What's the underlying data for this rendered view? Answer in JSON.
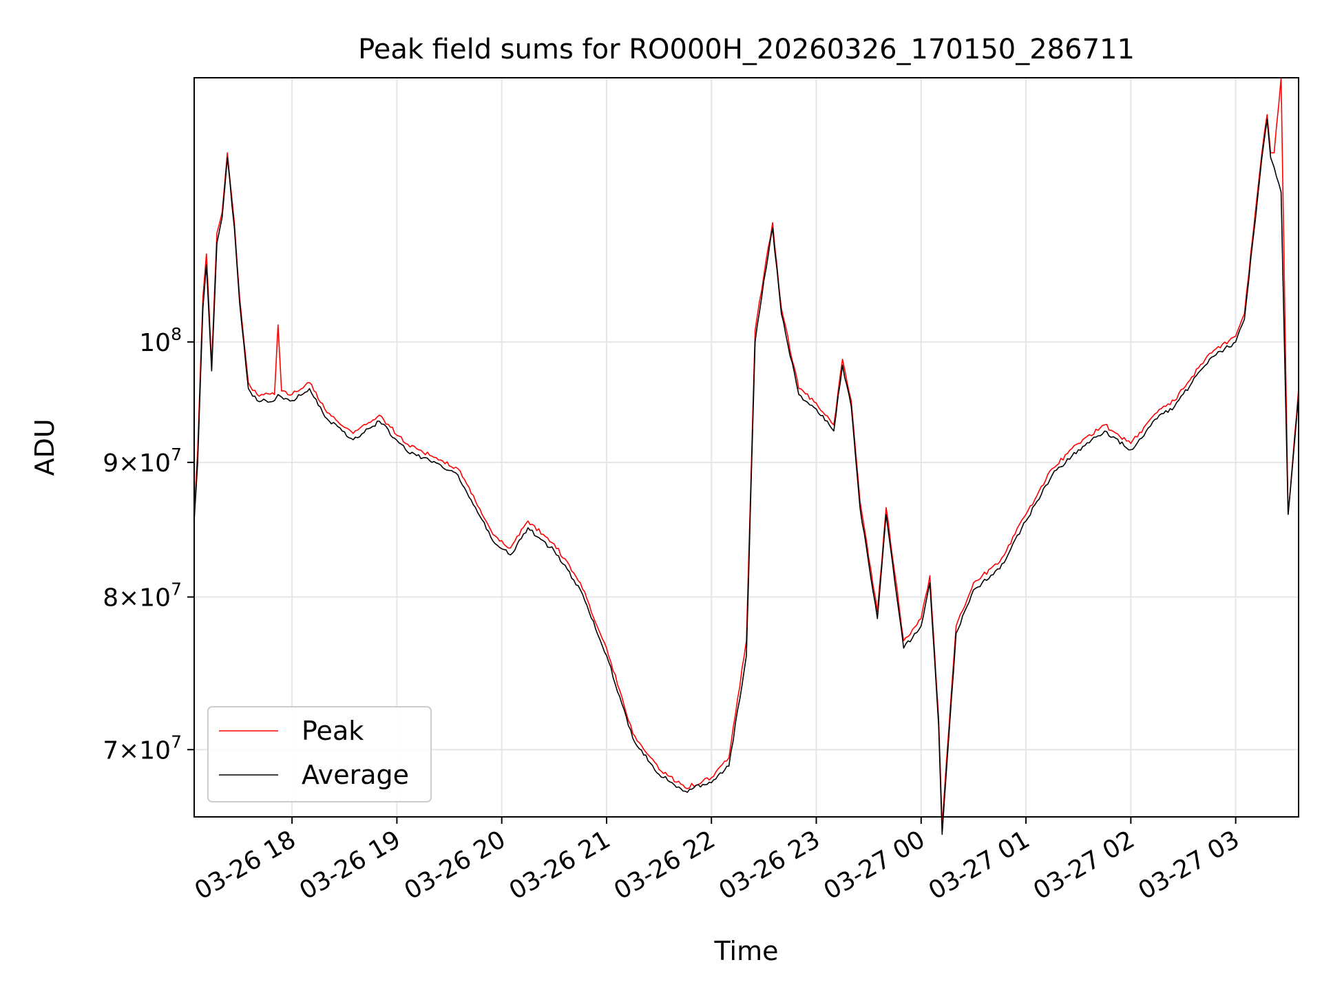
{
  "chart_data": {
    "type": "line",
    "title": "Peak field sums for RO000H_20260326_170150_286711",
    "xlabel": "Time",
    "ylabel": "ADU",
    "y_scale": "log",
    "ylim": [
      66000000,
      126000000
    ],
    "xlim": [
      "03-26 17:04",
      "03-27 03:36"
    ],
    "grid": true,
    "legend_position": "lower-left",
    "x_ticks": [
      "03-26 18",
      "03-26 19",
      "03-26 20",
      "03-26 21",
      "03-26 22",
      "03-26 23",
      "03-27 00",
      "03-27 01",
      "03-27 02",
      "03-27 03"
    ],
    "y_ticks": [
      {
        "value": 70000000,
        "mantissa": "7",
        "exponent": "7"
      },
      {
        "value": 80000000,
        "mantissa": "8",
        "exponent": "7"
      },
      {
        "value": 90000000,
        "mantissa": "9",
        "exponent": "7"
      },
      {
        "value": 100000000,
        "mantissa": "",
        "exponent": "8"
      }
    ],
    "series": [
      {
        "name": "Peak",
        "color": "#ff0000",
        "x": [
          "03-26 17:04",
          "03-26 17:06",
          "03-26 17:09",
          "03-26 17:11",
          "03-26 17:14",
          "03-26 17:17",
          "03-26 17:20",
          "03-26 17:23",
          "03-26 17:27",
          "03-26 17:30",
          "03-26 17:35",
          "03-26 17:40",
          "03-26 17:50",
          "03-26 17:52",
          "03-26 17:54",
          "03-26 18:00",
          "03-26 18:10",
          "03-26 18:20",
          "03-26 18:35",
          "03-26 18:50",
          "03-26 19:05",
          "03-26 19:20",
          "03-26 19:35",
          "03-26 19:45",
          "03-26 19:55",
          "03-26 20:05",
          "03-26 20:15",
          "03-26 20:30",
          "03-26 20:45",
          "03-26 21:00",
          "03-26 21:15",
          "03-26 21:30",
          "03-26 21:45",
          "03-26 21:55",
          "03-26 22:00",
          "03-26 22:10",
          "03-26 22:20",
          "03-26 22:25",
          "03-26 22:30",
          "03-26 22:35",
          "03-26 22:40",
          "03-26 22:50",
          "03-26 23:00",
          "03-26 23:10",
          "03-26 23:15",
          "03-26 23:20",
          "03-26 23:25",
          "03-26 23:35",
          "03-26 23:40",
          "03-26 23:50",
          "03-27 00:00",
          "03-27 00:05",
          "03-27 00:10",
          "03-27 00:12",
          "03-27 00:20",
          "03-27 00:30",
          "03-27 00:45",
          "03-27 01:00",
          "03-27 01:15",
          "03-27 01:30",
          "03-27 01:45",
          "03-27 02:00",
          "03-27 02:15",
          "03-27 02:25",
          "03-27 02:35",
          "03-27 02:45",
          "03-27 03:00",
          "03-27 03:05",
          "03-27 03:10",
          "03-27 03:15",
          "03-27 03:18",
          "03-27 03:20",
          "03-27 03:22",
          "03-27 03:26",
          "03-27 03:30",
          "03-27 03:36"
        ],
        "y": [
          86000000,
          91000000,
          104000000,
          108000000,
          98000000,
          110000000,
          112000000,
          118000000,
          111000000,
          104000000,
          96500000,
          95500000,
          95500000,
          101500000,
          95800000,
          95500000,
          96500000,
          94000000,
          92300000,
          93800000,
          91500000,
          90500000,
          89500000,
          87000000,
          84500000,
          83500000,
          85500000,
          83800000,
          81000000,
          76500000,
          71000000,
          68800000,
          67700000,
          68100000,
          68300000,
          69500000,
          77000000,
          101000000,
          106000000,
          111000000,
          103000000,
          96000000,
          94800000,
          93000000,
          98500000,
          95000000,
          87000000,
          79000000,
          86500000,
          77000000,
          78500000,
          81500000,
          72000000,
          65500000,
          78000000,
          81000000,
          82500000,
          86000000,
          89500000,
          91500000,
          93000000,
          91500000,
          94000000,
          95000000,
          97000000,
          99000000,
          100500000,
          102500000,
          110000000,
          118000000,
          122000000,
          118000000,
          118000000,
          126000000,
          86000000,
          96000000
        ]
      },
      {
        "name": "Average",
        "color": "#000000",
        "x": [
          "03-26 17:04",
          "03-26 17:06",
          "03-26 17:09",
          "03-26 17:11",
          "03-26 17:14",
          "03-26 17:17",
          "03-26 17:20",
          "03-26 17:23",
          "03-26 17:27",
          "03-26 17:30",
          "03-26 17:35",
          "03-26 17:40",
          "03-26 17:50",
          "03-26 17:52",
          "03-26 17:54",
          "03-26 18:00",
          "03-26 18:10",
          "03-26 18:20",
          "03-26 18:35",
          "03-26 18:50",
          "03-26 19:05",
          "03-26 19:20",
          "03-26 19:35",
          "03-26 19:45",
          "03-26 19:55",
          "03-26 20:05",
          "03-26 20:15",
          "03-26 20:30",
          "03-26 20:45",
          "03-26 21:00",
          "03-26 21:15",
          "03-26 21:30",
          "03-26 21:45",
          "03-26 21:55",
          "03-26 22:00",
          "03-26 22:10",
          "03-26 22:20",
          "03-26 22:25",
          "03-26 22:30",
          "03-26 22:35",
          "03-26 22:40",
          "03-26 22:50",
          "03-26 23:00",
          "03-26 23:10",
          "03-26 23:15",
          "03-26 23:20",
          "03-26 23:25",
          "03-26 23:35",
          "03-26 23:40",
          "03-26 23:50",
          "03-27 00:00",
          "03-27 00:05",
          "03-27 00:10",
          "03-27 00:12",
          "03-27 00:20",
          "03-27 00:30",
          "03-27 00:45",
          "03-27 01:00",
          "03-27 01:15",
          "03-27 01:30",
          "03-27 01:45",
          "03-27 02:00",
          "03-27 02:15",
          "03-27 02:25",
          "03-27 02:35",
          "03-27 02:45",
          "03-27 03:00",
          "03-27 03:05",
          "03-27 03:10",
          "03-27 03:15",
          "03-27 03:18",
          "03-27 03:20",
          "03-27 03:22",
          "03-27 03:26",
          "03-27 03:30",
          "03-27 03:36"
        ],
        "y": [
          85500000,
          90000000,
          103000000,
          107000000,
          97500000,
          109000000,
          111500000,
          117500000,
          110500000,
          103500000,
          96000000,
          95000000,
          95000000,
          95500000,
          95300000,
          95000000,
          96000000,
          93500000,
          91800000,
          93300000,
          91000000,
          90000000,
          89000000,
          86500000,
          84000000,
          83000000,
          85000000,
          83300000,
          80500000,
          76000000,
          70700000,
          68500000,
          67500000,
          67900000,
          68000000,
          69000000,
          76000000,
          100000000,
          105500000,
          110500000,
          102500000,
          95500000,
          94300000,
          92500000,
          98000000,
          94500000,
          86500000,
          78500000,
          86000000,
          76500000,
          78000000,
          81000000,
          71500000,
          65000000,
          77500000,
          80500000,
          82000000,
          85500000,
          89000000,
          91000000,
          92500000,
          91000000,
          93500000,
          94500000,
          96500000,
          98500000,
          100000000,
          102000000,
          109500000,
          117500000,
          121500000,
          117500000,
          116500000,
          114000000,
          86000000,
          95500000
        ]
      }
    ]
  }
}
